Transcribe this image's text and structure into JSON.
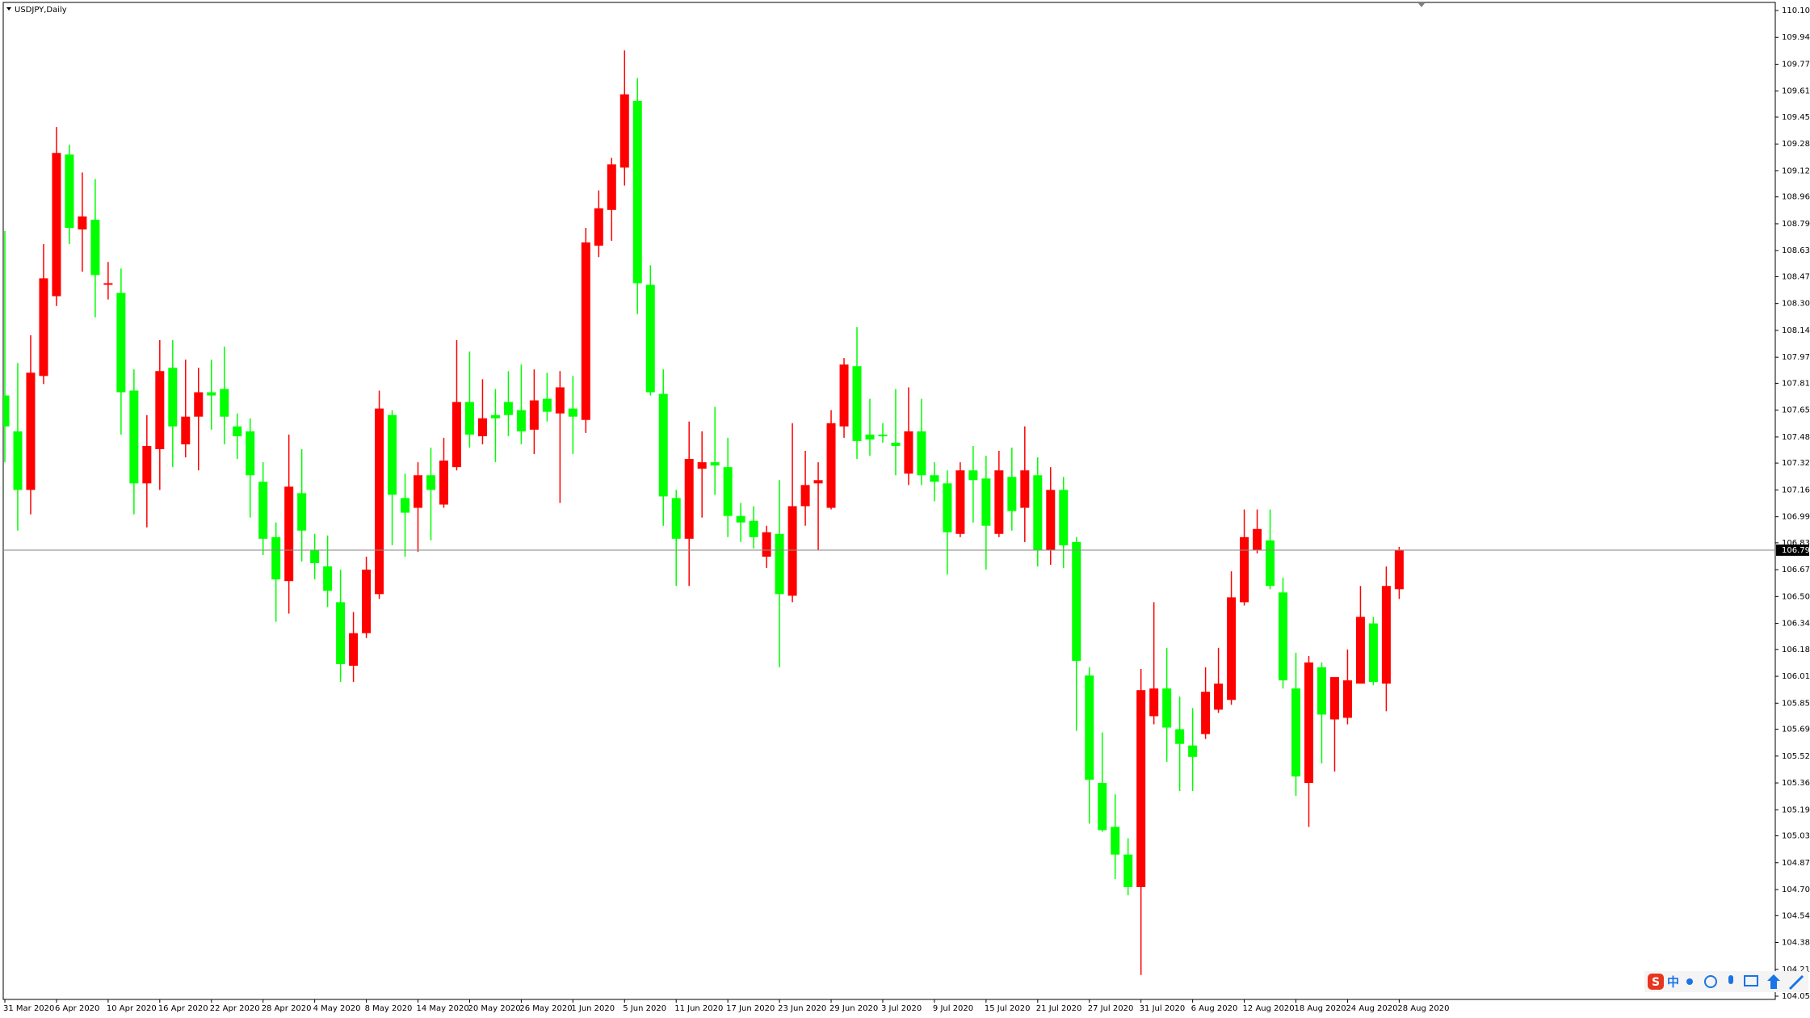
{
  "chart_data": {
    "type": "candlestick",
    "title": "USDJPY,Daily",
    "categories": [
      "31 Mar 2020",
      null,
      null,
      null,
      "6 Apr 2020",
      null,
      null,
      null,
      "10 Apr 2020",
      null,
      null,
      null,
      "16 Apr 2020",
      null,
      null,
      null,
      "22 Apr 2020",
      null,
      null,
      null,
      "28 Apr 2020",
      null,
      null,
      null,
      "4 May 2020",
      null,
      null,
      null,
      "8 May 2020",
      null,
      null,
      null,
      "14 May 2020",
      null,
      null,
      null,
      "20 May 2020",
      null,
      null,
      null,
      "26 May 2020",
      null,
      null,
      null,
      "1 Jun 2020",
      null,
      null,
      null,
      "5 Jun 2020",
      null,
      null,
      null,
      "11 Jun 2020",
      null,
      null,
      null,
      "17 Jun 2020",
      null,
      null,
      null,
      "23 Jun 2020",
      null,
      null,
      null,
      "29 Jun 2020",
      null,
      null,
      null,
      "3 Jul 2020",
      null,
      null,
      null,
      "9 Jul 2020",
      null,
      null,
      null,
      "15 Jul 2020",
      null,
      null,
      null,
      "21 Jul 2020",
      null,
      null,
      null,
      "27 Jul 2020",
      null,
      null,
      null,
      "31 Jul 2020",
      null,
      null,
      null,
      "6 Aug 2020",
      null,
      null,
      null,
      "12 Aug 2020",
      null,
      null,
      null,
      "18 Aug 2020",
      null,
      null,
      null,
      "24 Aug 2020",
      null,
      null,
      null,
      "28 Aug 2020"
    ],
    "open": [
      107.74,
      107.52,
      107.16,
      107.86,
      108.35,
      109.22,
      108.76,
      108.82,
      108.42,
      108.37,
      107.77,
      107.2,
      107.41,
      107.91,
      107.44,
      107.61,
      107.76,
      107.78,
      107.55,
      107.52,
      107.21,
      106.87,
      106.6,
      107.14,
      106.79,
      106.69,
      106.47,
      106.08,
      106.28,
      106.52,
      107.62,
      107.11,
      107.05,
      107.25,
      107.07,
      107.3,
      107.7,
      107.49,
      107.62,
      107.7,
      107.65,
      107.53,
      107.72,
      107.63,
      107.66,
      107.59,
      108.66,
      108.88,
      109.14,
      109.55,
      108.42,
      107.75,
      107.11,
      106.86,
      107.29,
      107.33,
      107.3,
      107.0,
      106.97,
      106.75,
      106.89,
      106.51,
      107.06,
      107.2,
      107.05,
      107.55,
      107.92,
      107.5,
      107.5,
      107.45,
      107.26,
      107.52,
      107.25,
      107.2,
      106.89,
      107.28,
      107.23,
      106.89,
      107.24,
      107.05,
      107.25,
      106.79,
      107.16,
      106.84,
      106.02,
      105.36,
      105.09,
      104.92,
      104.72,
      105.77,
      105.94,
      105.69,
      105.59,
      105.66,
      105.81,
      105.87,
      106.47,
      106.79,
      106.85,
      106.53,
      105.94,
      105.36,
      106.07,
      105.75,
      105.76,
      105.97,
      106.34,
      105.97,
      106.55
    ],
    "high": [
      108.75,
      107.94,
      108.11,
      108.67,
      109.39,
      109.28,
      109.11,
      109.07,
      108.56,
      108.52,
      107.9,
      107.62,
      108.08,
      108.08,
      107.96,
      107.91,
      107.96,
      108.04,
      107.63,
      107.6,
      107.33,
      106.96,
      107.5,
      107.41,
      106.89,
      106.88,
      106.67,
      106.41,
      106.75,
      107.77,
      107.65,
      107.26,
      107.33,
      107.42,
      107.48,
      108.08,
      108.01,
      107.84,
      107.78,
      107.89,
      107.93,
      107.9,
      107.88,
      107.89,
      107.86,
      108.77,
      109.0,
      109.2,
      109.86,
      109.69,
      108.54,
      107.9,
      107.16,
      107.58,
      107.52,
      107.67,
      107.48,
      107.08,
      107.06,
      106.94,
      107.22,
      107.57,
      107.4,
      107.33,
      107.65,
      107.97,
      108.16,
      107.72,
      107.57,
      107.78,
      107.79,
      107.72,
      107.33,
      107.28,
      107.33,
      107.43,
      107.37,
      107.4,
      107.42,
      107.55,
      107.36,
      107.3,
      107.24,
      106.87,
      106.07,
      105.67,
      105.29,
      105.02,
      106.06,
      106.47,
      106.19,
      105.89,
      105.82,
      106.07,
      106.19,
      106.66,
      107.04,
      107.04,
      107.04,
      106.62,
      106.16,
      106.14,
      106.1,
      106.01,
      106.18,
      106.57,
      106.38,
      106.69,
      106.81
    ],
    "low": [
      107.33,
      106.91,
      107.01,
      107.81,
      108.29,
      108.67,
      108.5,
      108.22,
      108.33,
      107.5,
      107.01,
      106.93,
      107.16,
      107.3,
      107.36,
      107.28,
      107.53,
      107.44,
      107.35,
      106.99,
      106.76,
      106.35,
      106.4,
      106.72,
      106.61,
      106.44,
      105.98,
      105.98,
      106.25,
      106.49,
      106.82,
      106.75,
      106.78,
      106.85,
      107.05,
      107.28,
      107.42,
      107.44,
      107.33,
      107.49,
      107.44,
      107.38,
      107.58,
      107.08,
      107.38,
      107.51,
      108.59,
      108.69,
      109.03,
      108.24,
      107.74,
      106.94,
      106.57,
      106.57,
      106.99,
      107.13,
      106.87,
      106.84,
      106.8,
      106.68,
      106.07,
      106.47,
      106.94,
      106.79,
      107.04,
      107.48,
      107.35,
      107.37,
      107.45,
      107.25,
      107.19,
      107.19,
      107.09,
      106.64,
      106.87,
      106.96,
      106.67,
      106.87,
      106.91,
      106.84,
      106.69,
      106.7,
      106.68,
      105.68,
      105.11,
      105.06,
      104.77,
      104.67,
      104.18,
      105.72,
      105.49,
      105.31,
      105.31,
      105.63,
      105.79,
      105.84,
      106.45,
      106.77,
      106.55,
      105.94,
      105.28,
      105.09,
      105.48,
      105.43,
      105.72,
      105.97,
      105.96,
      105.8,
      106.49
    ],
    "close": [
      107.55,
      107.16,
      107.88,
      108.46,
      109.23,
      108.77,
      108.84,
      108.48,
      108.43,
      107.76,
      107.2,
      107.43,
      107.89,
      107.55,
      107.61,
      107.76,
      107.74,
      107.61,
      107.49,
      107.25,
      106.86,
      106.61,
      107.18,
      106.91,
      106.71,
      106.54,
      106.09,
      106.28,
      106.67,
      107.66,
      107.13,
      107.02,
      107.25,
      107.16,
      107.34,
      107.7,
      107.5,
      107.6,
      107.6,
      107.62,
      107.52,
      107.71,
      107.64,
      107.79,
      107.61,
      108.68,
      108.89,
      109.16,
      109.59,
      108.43,
      107.76,
      107.12,
      106.86,
      107.35,
      107.33,
      107.31,
      107.0,
      106.96,
      106.87,
      106.9,
      106.52,
      107.06,
      107.19,
      107.22,
      107.57,
      107.93,
      107.46,
      107.47,
      107.49,
      107.43,
      107.52,
      107.25,
      107.21,
      106.9,
      107.28,
      107.22,
      106.94,
      107.28,
      107.03,
      107.28,
      106.79,
      107.16,
      106.82,
      106.11,
      105.38,
      105.07,
      104.92,
      104.72,
      105.93,
      105.94,
      105.7,
      105.6,
      105.52,
      105.92,
      105.97,
      106.5,
      106.87,
      106.92,
      106.57,
      105.99,
      105.4,
      106.1,
      105.78,
      106.01,
      105.99,
      106.38,
      105.98,
      106.57,
      106.79
    ],
    "up_color": "#ff0000",
    "down_color": "#00ff00",
    "ylim": [
      104.05,
      110.105
    ],
    "yticks": [
      110.105,
      {
        "value": 109.94,
        "label": "109.940"
      },
      109.775,
      {
        "value": 109.61,
        "label": "109.610"
      },
      {
        "value": 109.45,
        "label": "109.450"
      },
      109.285,
      {
        "value": 109.12,
        "label": "109.120"
      },
      {
        "value": 108.96,
        "label": "108.960"
      },
      108.795,
      {
        "value": 108.63,
        "label": "108.630"
      },
      {
        "value": 108.47,
        "label": "108.470"
      },
      108.305,
      {
        "value": 108.14,
        "label": "108.140"
      },
      107.975,
      107.815,
      {
        "value": 107.65,
        "label": "107.650"
      },
      107.485,
      107.325,
      {
        "value": 107.16,
        "label": "107.160"
      },
      106.995,
      106.835,
      {
        "value": 106.67,
        "label": "106.670"
      },
      106.505,
      {
        "value": 106.34,
        "label": "106.340"
      },
      {
        "value": 106.18,
        "label": "106.180"
      },
      106.015,
      {
        "value": 105.85,
        "label": "105.850"
      },
      {
        "value": 105.69,
        "label": "105.690"
      },
      105.525,
      {
        "value": 105.36,
        "label": "105.360"
      },
      105.195,
      105.035,
      {
        "value": 104.87,
        "label": "104.870"
      },
      104.705,
      104.545,
      {
        "value": 104.38,
        "label": "104.380"
      },
      104.215,
      {
        "value": 104.05,
        "label": "104.050"
      }
    ],
    "price_line": {
      "value": 106.79,
      "label": "106.790"
    },
    "grid": false
  },
  "ime_toolbar": {
    "label": "中"
  }
}
